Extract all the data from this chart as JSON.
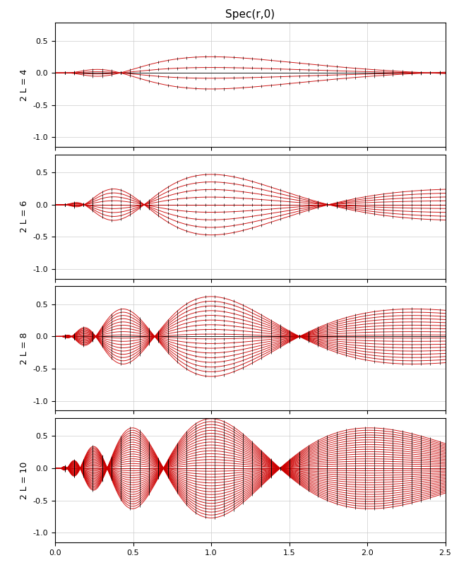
{
  "title": "Spec(r,0)",
  "system_sizes": [
    4,
    6,
    8,
    10
  ],
  "r_min": 0.0,
  "r_max": 2.5,
  "ylim": [
    -1.15,
    0.78
  ],
  "yticks": [
    -1.0,
    -0.5,
    0.0,
    0.5
  ],
  "xticks": [
    0.0,
    0.5,
    1.0,
    1.5,
    2.0,
    2.5
  ],
  "line_color_red": "#cc0000",
  "grid_color": "#cccccc",
  "bg_color": "#ffffff",
  "tick_step": 12
}
